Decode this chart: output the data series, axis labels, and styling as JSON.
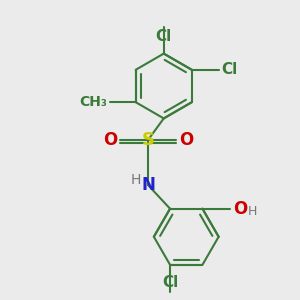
{
  "bg_color": "#ebebeb",
  "bond_color": "#3a7a3a",
  "bond_width": 1.5,
  "atom_colors": {
    "S": "#cccc00",
    "O": "#cc0000",
    "N": "#2222cc",
    "H": "#777777",
    "Cl": "#3a7a3a",
    "C": "#3a7a3a"
  },
  "scale": 45,
  "ox": 148,
  "oy": 160
}
